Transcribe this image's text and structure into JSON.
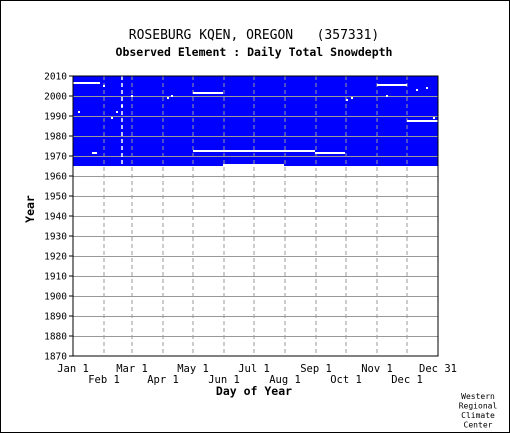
{
  "chart_data": {
    "type": "heatmap",
    "title": "ROSEBURG KQEN, OREGON   (357331)",
    "subtitle": "Observed Element : Daily Total Snowdepth",
    "xlabel": "Day of Year",
    "ylabel": "Year",
    "x_ticks_top_row": [
      "Jan 1",
      "Mar 1",
      "May 1",
      "Jul 1",
      "Sep 1",
      "Nov 1",
      "Dec 31"
    ],
    "x_ticks_bottom_row": [
      "Feb 1",
      "Apr 1",
      "Jun 1",
      "Aug 1",
      "Oct 1",
      "Dec 1"
    ],
    "xlim_day": [
      1,
      366
    ],
    "ylim_year": [
      1870,
      2010
    ],
    "y_ticks": [
      2010,
      2000,
      1990,
      1980,
      1970,
      1960,
      1950,
      1940,
      1930,
      1920,
      1910,
      1900,
      1890,
      1880,
      1870
    ],
    "grid": true,
    "observed_color": "#0000ff",
    "observed_period": {
      "start_year": 1965,
      "end_year": 2010
    },
    "missing_segments": [
      {
        "year": 2006.5,
        "start_day": 1,
        "end_day": 28
      },
      {
        "year": 2005.5,
        "start_day": 305,
        "end_day": 335
      },
      {
        "year": 2001.5,
        "start_day": 121,
        "end_day": 151
      },
      {
        "year": 1987.5,
        "start_day": 335,
        "end_day": 366
      },
      {
        "year": 1972.5,
        "start_day": 121,
        "end_day": 243
      },
      {
        "year": 1971.5,
        "start_day": 243,
        "end_day": 273
      },
      {
        "year": 1971.5,
        "start_day": 20,
        "end_day": 25
      },
      {
        "year": 1965.5,
        "start_day": 151,
        "end_day": 181
      },
      {
        "year": 1965.5,
        "start_day": 181,
        "end_day": 212
      },
      {
        "year": 1964.5,
        "start_day": 243,
        "end_day": 273
      }
    ],
    "missing_dots": [
      {
        "year": 2005,
        "day": 32
      },
      {
        "year": 2004,
        "day": 355
      },
      {
        "year": 2003,
        "day": 345
      },
      {
        "year": 2000,
        "day": 60
      },
      {
        "year": 2000,
        "day": 100
      },
      {
        "year": 2000,
        "day": 315
      },
      {
        "year": 1999,
        "day": 96
      },
      {
        "year": 1999,
        "day": 280
      },
      {
        "year": 1998,
        "day": 275
      },
      {
        "year": 1995,
        "day": 50
      },
      {
        "year": 1992,
        "day": 7
      },
      {
        "year": 1992,
        "day": 45
      },
      {
        "year": 1989,
        "day": 40
      },
      {
        "year": 1989,
        "day": 362
      }
    ],
    "missing_vertical_dashes": [
      {
        "day": 50,
        "from_year": 1965,
        "to_year": 2010
      }
    ],
    "credit": [
      "Western",
      "Regional",
      "Climate",
      "Center"
    ]
  }
}
